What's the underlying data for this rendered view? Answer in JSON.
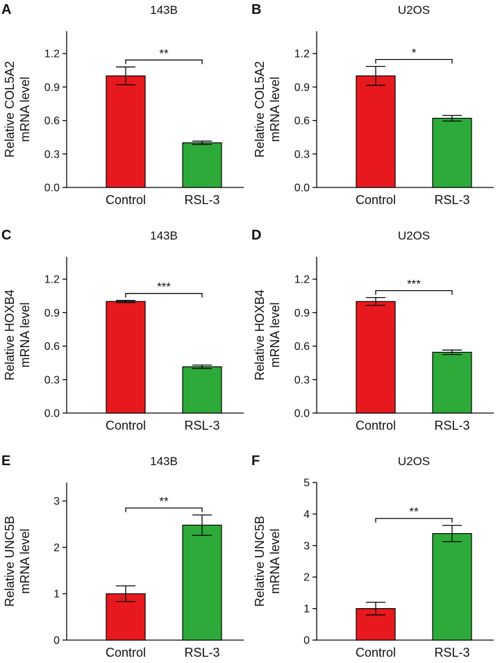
{
  "colors": {
    "control": "#e8191e",
    "rsl3": "#2daa3a",
    "stroke": "#000000"
  },
  "chart_data": [
    {
      "id": "a",
      "letter": "A",
      "type": "bar",
      "title": "143B",
      "ylabel_lines": [
        "Relative COL5A2",
        "mRNA level"
      ],
      "categories": [
        "Control",
        "RSL-3"
      ],
      "values": [
        1.0,
        0.4
      ],
      "errors": [
        0.08,
        0.015
      ],
      "ylim": [
        0,
        1.4
      ],
      "yticks": [
        0.0,
        0.3,
        0.6,
        0.9,
        1.2
      ],
      "tick_format": 1,
      "significance": "**"
    },
    {
      "id": "b",
      "letter": "B",
      "type": "bar",
      "title": "U2OS",
      "ylabel_lines": [
        "Relative COL5A2",
        "mRNA level"
      ],
      "categories": [
        "Control",
        "RSL-3"
      ],
      "values": [
        1.0,
        0.62
      ],
      "errors": [
        0.085,
        0.025
      ],
      "ylim": [
        0,
        1.4
      ],
      "yticks": [
        0.0,
        0.3,
        0.6,
        0.9,
        1.2
      ],
      "tick_format": 1,
      "significance": "*"
    },
    {
      "id": "c",
      "letter": "C",
      "type": "bar",
      "title": "143B",
      "ylabel_lines": [
        "Relative HOXB4",
        "mRNA level"
      ],
      "categories": [
        "Control",
        "RSL-3"
      ],
      "values": [
        1.0,
        0.415
      ],
      "errors": [
        0.01,
        0.015
      ],
      "ylim": [
        0,
        1.4
      ],
      "yticks": [
        0.0,
        0.3,
        0.6,
        0.9,
        1.2
      ],
      "tick_format": 1,
      "significance": "***"
    },
    {
      "id": "d",
      "letter": "D",
      "type": "bar",
      "title": "U2OS",
      "ylabel_lines": [
        "Relative HOXB4",
        "mRNA level"
      ],
      "categories": [
        "Control",
        "RSL-3"
      ],
      "values": [
        1.0,
        0.545
      ],
      "errors": [
        0.035,
        0.02
      ],
      "ylim": [
        0,
        1.4
      ],
      "yticks": [
        0.0,
        0.3,
        0.6,
        0.9,
        1.2
      ],
      "tick_format": 1,
      "significance": "***"
    },
    {
      "id": "e",
      "letter": "E",
      "type": "bar",
      "title": "143B",
      "ylabel_lines": [
        "Relative UNC5B",
        "mRNA level"
      ],
      "categories": [
        "Control",
        "RSL-3"
      ],
      "values": [
        1.0,
        2.48
      ],
      "errors": [
        0.17,
        0.22
      ],
      "ylim": [
        0,
        3.4
      ],
      "yticks": [
        0,
        1,
        2,
        3
      ],
      "tick_format": 0,
      "significance": "**"
    },
    {
      "id": "f",
      "letter": "F",
      "type": "bar",
      "title": "U2OS",
      "ylabel_lines": [
        "Relative UNC5B",
        "mRNA level"
      ],
      "categories": [
        "Control",
        "RSL-3"
      ],
      "values": [
        1.0,
        3.38
      ],
      "errors": [
        0.2,
        0.26
      ],
      "ylim": [
        0,
        5
      ],
      "yticks": [
        0,
        1,
        2,
        3,
        4,
        5
      ],
      "tick_format": 0,
      "significance": "**"
    }
  ]
}
